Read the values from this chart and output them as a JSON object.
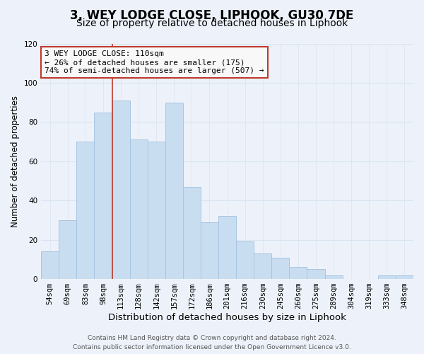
{
  "title1": "3, WEY LODGE CLOSE, LIPHOOK, GU30 7DE",
  "title2": "Size of property relative to detached houses in Liphook",
  "xlabel": "Distribution of detached houses by size in Liphook",
  "ylabel": "Number of detached properties",
  "bar_labels": [
    "54sqm",
    "69sqm",
    "83sqm",
    "98sqm",
    "113sqm",
    "128sqm",
    "142sqm",
    "157sqm",
    "172sqm",
    "186sqm",
    "201sqm",
    "216sqm",
    "230sqm",
    "245sqm",
    "260sqm",
    "275sqm",
    "289sqm",
    "304sqm",
    "319sqm",
    "333sqm",
    "348sqm"
  ],
  "bar_values": [
    14,
    30,
    70,
    85,
    91,
    71,
    70,
    90,
    47,
    29,
    32,
    19,
    13,
    11,
    6,
    5,
    2,
    0,
    0,
    2,
    2
  ],
  "bar_color": "#c9ddf0",
  "bar_edge_color": "#a8c4e0",
  "vline_x_index": 4,
  "annotation_line1": "3 WEY LODGE CLOSE: 110sqm",
  "annotation_line2": "← 26% of detached houses are smaller (175)",
  "annotation_line3": "74% of semi-detached houses are larger (507) →",
  "annotation_box_edge_color": "#c0392b",
  "annotation_box_face_color": "#f8f8f8",
  "vline_color": "#c0392b",
  "ylim": [
    0,
    120
  ],
  "yticks": [
    0,
    20,
    40,
    60,
    80,
    100,
    120
  ],
  "footer_line1": "Contains HM Land Registry data © Crown copyright and database right 2024.",
  "footer_line2": "Contains public sector information licensed under the Open Government Licence v3.0.",
  "bg_color": "#edf2fa",
  "grid_color": "#d8e4f0",
  "title1_fontsize": 12,
  "title2_fontsize": 10,
  "xlabel_fontsize": 9.5,
  "ylabel_fontsize": 8.5,
  "tick_fontsize": 7.5,
  "annotation_fontsize": 8,
  "footer_fontsize": 6.5
}
